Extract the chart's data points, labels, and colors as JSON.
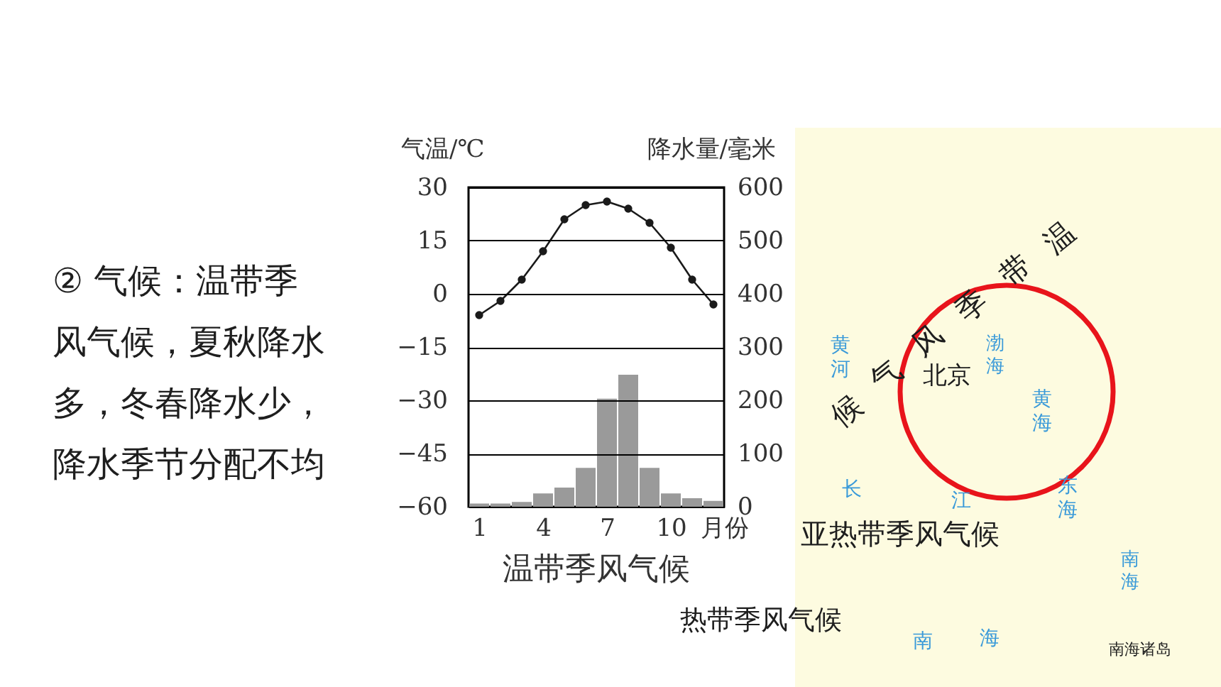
{
  "chart_data": {
    "type": "bar",
    "title": "温带季风气候",
    "xlabel": "月份",
    "ylabel": "气温/℃",
    "y2label": "降水量/毫米",
    "x": [
      1,
      2,
      3,
      4,
      5,
      6,
      7,
      8,
      9,
      10,
      11,
      12
    ],
    "xlim": [
      0.5,
      12.5
    ],
    "xticks": [
      1,
      4,
      7,
      10
    ],
    "ylim": [
      -60,
      30
    ],
    "yticks": [
      30,
      15,
      0,
      -15,
      -30,
      -45,
      -60
    ],
    "y2lim": [
      0,
      600
    ],
    "y2ticks": [
      600,
      500,
      400,
      300,
      200,
      100,
      0
    ],
    "series": [
      {
        "type": "line",
        "color": "#1a1a1a",
        "values": [
          -6,
          -2,
          4,
          12,
          21,
          25,
          26,
          24,
          20,
          13,
          4,
          -3
        ]
      },
      {
        "axis": "y2",
        "color": "#9a9a9a",
        "values": [
          6,
          6,
          9,
          25,
          36,
          73,
          203,
          248,
          73,
          25,
          16,
          11
        ]
      }
    ],
    "marker": "circle",
    "grid": "y",
    "annotations": [
      "② 气候：温带季风气候，夏秋降水多，冬春降水少，降水季节分配不均",
      "温带季风气候",
      "北京",
      "渤海",
      "黄海",
      "黄河",
      "长江",
      "东海",
      "亚热带季风气候",
      "热带季风气候",
      "南海",
      "南海",
      "南海诸岛"
    ]
  }
}
